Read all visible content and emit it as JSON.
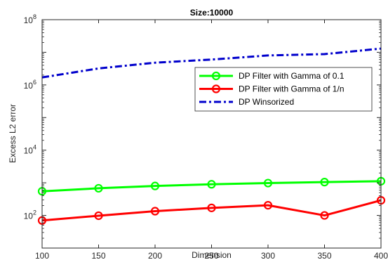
{
  "chart_data": {
    "type": "line",
    "title": "Size:10000",
    "xlabel": "Dimension",
    "ylabel": "Excess L2 error",
    "yscale": "log",
    "xlim": [
      100,
      400
    ],
    "ylim": [
      10,
      100000000
    ],
    "x": [
      100,
      150,
      200,
      250,
      300,
      350,
      400
    ],
    "xticks": [
      {
        "value": 100,
        "label": "100"
      },
      {
        "value": 150,
        "label": "150"
      },
      {
        "value": 200,
        "label": "200"
      },
      {
        "value": 250,
        "label": "250"
      },
      {
        "value": 300,
        "label": "300"
      },
      {
        "value": 350,
        "label": "350"
      },
      {
        "value": 400,
        "label": "400"
      }
    ],
    "yticks": [
      {
        "value": 100,
        "base": "10",
        "exp": "2"
      },
      {
        "value": 10000,
        "base": "10",
        "exp": "4"
      },
      {
        "value": 1000000,
        "base": "10",
        "exp": "6"
      },
      {
        "value": 100000000,
        "base": "10",
        "exp": "8"
      }
    ],
    "grid": false,
    "legend_position": "upper-right",
    "series": [
      {
        "name": "DP Filter with Gamma of 0.1",
        "color": "#00ff00",
        "line_style": "solid",
        "marker": "circle",
        "values": [
          550,
          680,
          800,
          900,
          980,
          1050,
          1120
        ]
      },
      {
        "name": "DP Filter with Gamma of 1/n",
        "color": "#ff0000",
        "line_style": "solid",
        "marker": "circle",
        "values": [
          70,
          98,
          135,
          170,
          205,
          100,
          290
        ]
      },
      {
        "name": "DP Winsorized",
        "color": "#0000cc",
        "line_style": "dashdot",
        "marker": "none",
        "values": [
          1700000,
          3200000,
          4800000,
          6000000,
          8000000,
          8800000,
          13000000
        ]
      }
    ]
  }
}
